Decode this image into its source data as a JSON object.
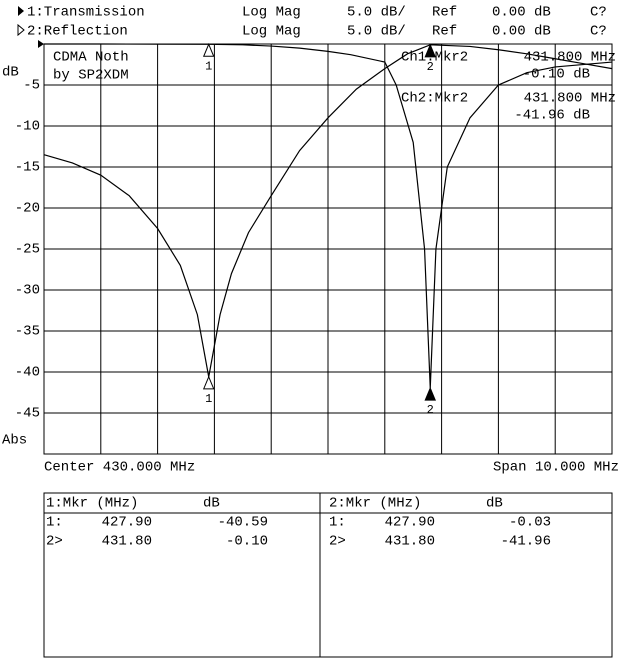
{
  "chart_data": {
    "type": "line",
    "series": [
      {
        "name": "1:Transmission",
        "color": "#000000",
        "x": [
          425,
          425.5,
          426,
          426.5,
          427,
          427.4,
          427.7,
          427.9,
          428.1,
          428.3,
          428.6,
          429,
          429.5,
          430,
          430.5,
          431,
          431.4,
          431.8,
          432.5,
          433,
          433.5,
          434,
          434.5,
          435
        ],
        "values": [
          -13.5,
          -14.5,
          -16,
          -18.5,
          -22.5,
          -27,
          -33,
          -40.59,
          -33,
          -28,
          -23,
          -18.5,
          -13,
          -9,
          -5.5,
          -3,
          -1.2,
          -0.1,
          -0.3,
          -0.7,
          -1.2,
          -1.8,
          -2.4,
          -3
        ]
      },
      {
        "name": "2:Reflection",
        "color": "#000000",
        "x": [
          425,
          426,
          427,
          427.9,
          428.5,
          429,
          429.5,
          430,
          430.4,
          431,
          431.2,
          431.5,
          431.7,
          431.8,
          431.9,
          432.1,
          432.5,
          433,
          433.5,
          434,
          435
        ],
        "values": [
          0,
          0,
          -0.02,
          -0.03,
          -0.1,
          -0.25,
          -0.5,
          -0.9,
          -1.3,
          -2.2,
          -5,
          -12,
          -25,
          -41.96,
          -25,
          -15,
          -9,
          -5,
          -3.5,
          -2.8,
          -2.2
        ]
      }
    ],
    "channel_info": [
      {
        "format": "Log Mag",
        "scale": "5.0 dB/",
        "ref_label": "Ref",
        "ref": "0.00 dB",
        "status": "C?"
      },
      {
        "format": "Log Mag",
        "scale": "5.0 dB/",
        "ref_label": "Ref",
        "ref": "0.00 dB",
        "status": "C?"
      }
    ],
    "markers": [
      {
        "label": "1",
        "x": 427.9
      },
      {
        "label": "2",
        "x": 431.8
      }
    ],
    "xlim": [
      425,
      435
    ],
    "xticks": [
      425,
      426,
      427,
      428,
      429,
      430,
      431,
      432,
      433,
      434,
      435
    ],
    "ylim": [
      -50,
      0
    ],
    "yticks": [
      -5,
      -10,
      -15,
      -20,
      -25,
      -30,
      -35,
      -40,
      -45
    ],
    "y_unit": "dB",
    "y_footer": "Abs",
    "x_left_label": "Center 430.000 MHz",
    "x_right_label": "Span 10.000 MHz",
    "annotations": [
      "CDMA Noth",
      "by SP2XDM"
    ],
    "marker_readouts": [
      {
        "title": "Ch1:Mkr2",
        "freq": "431.800 MHz",
        "level": "-0.10 dB"
      },
      {
        "title": "Ch2:Mkr2",
        "freq": "431.800 MHz",
        "level": "-41.96 dB"
      }
    ],
    "grid": true
  },
  "marker_tables": [
    {
      "header": [
        "1:Mkr (MHz)",
        "dB"
      ],
      "rows": [
        [
          "1:",
          "427.90",
          "-40.59"
        ],
        [
          "2>",
          "431.80",
          "-0.10"
        ]
      ]
    },
    {
      "header": [
        "2:Mkr (MHz)",
        "dB"
      ],
      "rows": [
        [
          "1:",
          "427.90",
          "-0.03"
        ],
        [
          "2>",
          "431.80",
          "-41.96"
        ]
      ]
    }
  ]
}
